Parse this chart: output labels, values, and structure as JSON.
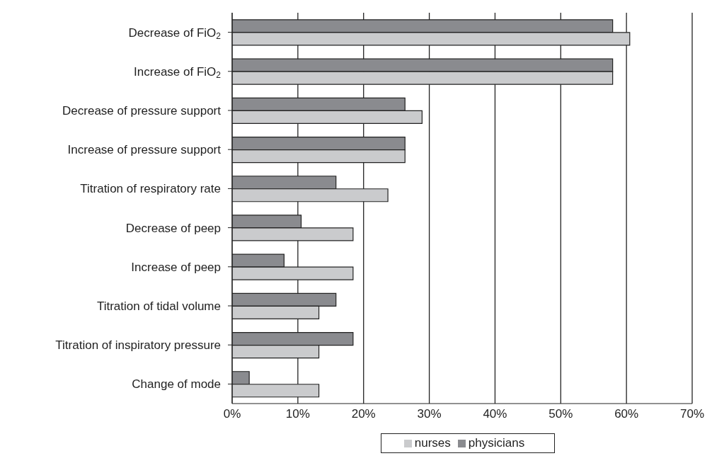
{
  "chart_data": {
    "type": "bar",
    "orientation": "horizontal",
    "categories": [
      "Decrease of FiO$_{2}$",
      "Increase of FiO$_{2}$",
      "Decrease of pressure support",
      "Increase of pressure support",
      "Titration of respiratory rate",
      "Decrease of peep",
      "Increase of peep",
      "Titration of tidal volume",
      "Titration of inspiratory pressure",
      "Change of mode"
    ],
    "series": [
      {
        "name": "nurses",
        "color": "#cacbcd",
        "values": [
          60.5,
          57.9,
          28.9,
          26.3,
          23.7,
          18.4,
          18.4,
          13.2,
          13.2,
          13.2
        ]
      },
      {
        "name": "physicians",
        "color": "#8a8b8f",
        "values": [
          57.9,
          57.9,
          26.3,
          26.3,
          15.8,
          10.5,
          7.9,
          15.8,
          18.4,
          2.6
        ]
      }
    ],
    "xlim": [
      0,
      70
    ],
    "xticks": [
      {
        "value": 0,
        "label": "0%"
      },
      {
        "value": 10,
        "label": "10%"
      },
      {
        "value": 20,
        "label": "20%"
      },
      {
        "value": 30,
        "label": "30%"
      },
      {
        "value": 40,
        "label": "40%"
      },
      {
        "value": 50,
        "label": "50%"
      },
      {
        "value": 60,
        "label": "60%"
      },
      {
        "value": 70,
        "label": "70%"
      }
    ],
    "grid": "x",
    "legend": "bottom"
  }
}
